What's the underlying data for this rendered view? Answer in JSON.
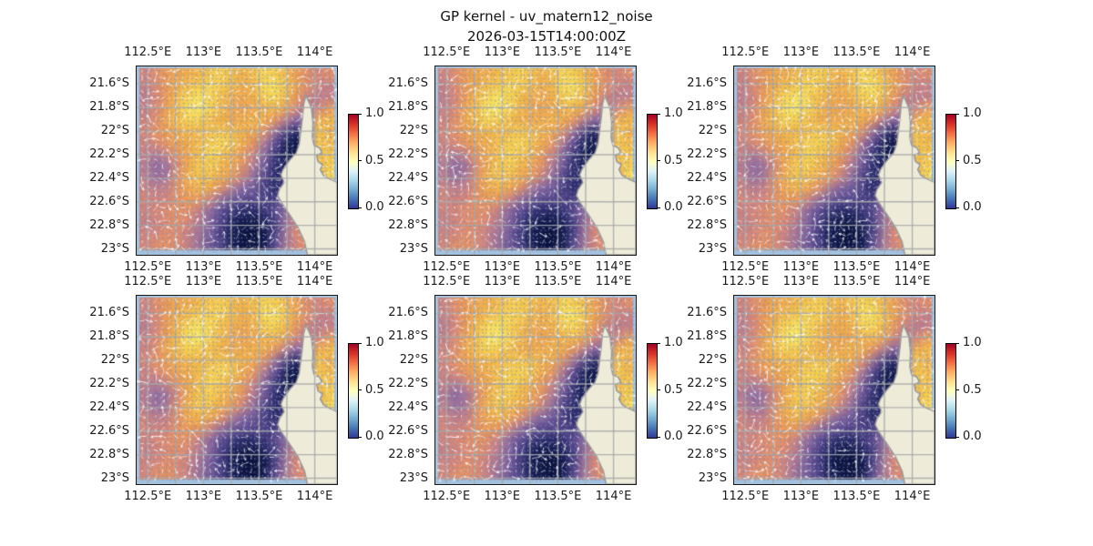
{
  "figure": {
    "title": "GP kernel - uv_matern12_noise",
    "subtitle": "2026-03-15T14:00:00Z",
    "background": "#ffffff"
  },
  "axes": {
    "x_ticks": [
      "112.5°E",
      "113°E",
      "113.5°E",
      "114°E"
    ],
    "y_ticks": [
      "21.6°S",
      "21.8°S",
      "22°S",
      "22.2°S",
      "22.4°S",
      "22.6°S",
      "22.8°S",
      "23°S"
    ]
  },
  "colorbar": {
    "ticks": [
      "1.0",
      "0.5",
      "0.0"
    ],
    "colormap": "RdYlBu_r",
    "gradient_stops": [
      "#a50026",
      "#d73027",
      "#f46d43",
      "#fdae61",
      "#fee090",
      "#ffffbf",
      "#e0f3f8",
      "#abd9e9",
      "#74add1",
      "#4575b4",
      "#313695"
    ]
  },
  "panels": [
    {
      "name": "panel-r1c1",
      "row": 0,
      "col": 0,
      "seed": 11
    },
    {
      "name": "panel-r1c2",
      "row": 0,
      "col": 1,
      "seed": 23
    },
    {
      "name": "panel-r1c3",
      "row": 0,
      "col": 2,
      "seed": 37
    },
    {
      "name": "panel-r2c1",
      "row": 1,
      "col": 0,
      "seed": 51
    },
    {
      "name": "panel-r2c2",
      "row": 1,
      "col": 1,
      "seed": 67
    },
    {
      "name": "panel-r2c3",
      "row": 1,
      "col": 2,
      "seed": 83
    }
  ],
  "map_style": {
    "land_color": "#eeecd9",
    "coast_color": "#9a9a9a",
    "ocean_edge_color": "#a3c1de",
    "grid_color": "#aaaaaa",
    "arrow_color": "#ffffff",
    "dot_color": "#6b93c4"
  },
  "chart_data": {
    "type": "heatmap",
    "title": "GP kernel - uv_matern12_noise",
    "subtitle": "2026-03-15T14:00:00Z",
    "layout": "2 rows x 3 columns of near-identical geographic subplots, each with its own vertical colorbar on the right",
    "lon_range_deg_east": [
      112.4,
      114.2
    ],
    "lat_range_deg_south": [
      21.45,
      23.05
    ],
    "x_tick_lons": [
      112.5,
      113.0,
      113.5,
      114.0
    ],
    "y_tick_lats": [
      21.6,
      21.8,
      22.0,
      22.2,
      22.4,
      22.6,
      22.8,
      23.0
    ],
    "grid_spacing_deg": {
      "lon": 0.25,
      "lat": 0.2
    },
    "colorbar_range": [
      0.0,
      1.0
    ],
    "colorbar_ticks": [
      1.0,
      0.5,
      0.0
    ],
    "overlay": "quiver field: dense small blue markers on every grid cell plus sparse white streak arrows",
    "field_colormap_stops": [
      [
        0.0,
        "#0a1038"
      ],
      [
        0.1,
        "#1a2058"
      ],
      [
        0.22,
        "#3b3578"
      ],
      [
        0.34,
        "#655095"
      ],
      [
        0.44,
        "#8a68a0"
      ],
      [
        0.54,
        "#b67b92"
      ],
      [
        0.63,
        "#de8a76"
      ],
      [
        0.72,
        "#ee9c55"
      ],
      [
        0.82,
        "#f4b34a"
      ],
      [
        0.9,
        "#f7cd4e"
      ],
      [
        1.0,
        "#faee66"
      ]
    ],
    "field_grid_cols": 18,
    "field_grid_rows": 16,
    "field_grid": [
      [
        0.6,
        0.66,
        0.72,
        0.78,
        0.8,
        0.84,
        0.88,
        0.9,
        0.86,
        0.82,
        0.86,
        0.92,
        0.9,
        0.84,
        0.74,
        0.66,
        0.62,
        0.66
      ],
      [
        0.58,
        0.64,
        0.72,
        0.8,
        0.86,
        0.9,
        0.92,
        0.9,
        0.86,
        0.8,
        0.84,
        0.94,
        0.96,
        0.88,
        0.76,
        0.66,
        0.6,
        0.58
      ],
      [
        0.56,
        0.62,
        0.72,
        0.84,
        0.92,
        0.96,
        0.92,
        0.86,
        0.8,
        0.78,
        0.82,
        0.9,
        0.92,
        0.84,
        0.7,
        0.6,
        0.56,
        0.58
      ],
      [
        0.58,
        0.64,
        0.76,
        0.86,
        0.96,
        0.98,
        0.92,
        0.84,
        0.78,
        0.76,
        0.78,
        0.82,
        0.84,
        0.76,
        0.62,
        0.52,
        0.62,
        0.72
      ],
      [
        0.6,
        0.66,
        0.78,
        0.86,
        0.92,
        0.9,
        0.86,
        0.82,
        0.78,
        0.8,
        0.82,
        0.8,
        0.7,
        0.56,
        0.44,
        0.52,
        0.8,
        0.84
      ],
      [
        0.62,
        0.68,
        0.74,
        0.8,
        0.84,
        0.84,
        0.86,
        0.88,
        0.86,
        0.82,
        0.78,
        0.68,
        0.5,
        0.3,
        0.16,
        0.6,
        0.88,
        0.82
      ],
      [
        0.6,
        0.64,
        0.7,
        0.76,
        0.8,
        0.86,
        0.9,
        0.92,
        0.88,
        0.8,
        0.7,
        0.54,
        0.34,
        0.12,
        0.06,
        0.55,
        0.88,
        0.84
      ],
      [
        0.58,
        0.54,
        0.6,
        0.7,
        0.78,
        0.86,
        0.92,
        0.88,
        0.82,
        0.72,
        0.6,
        0.44,
        0.24,
        0.08,
        0.05,
        0.5,
        0.86,
        0.88
      ],
      [
        0.54,
        0.46,
        0.5,
        0.64,
        0.8,
        0.88,
        0.9,
        0.84,
        0.78,
        0.68,
        0.54,
        0.38,
        0.2,
        0.1,
        0.28,
        0.5,
        0.84,
        0.9
      ],
      [
        0.56,
        0.48,
        0.52,
        0.68,
        0.82,
        0.88,
        0.86,
        0.8,
        0.72,
        0.6,
        0.46,
        0.3,
        0.18,
        0.14,
        0.3,
        0.55,
        0.8,
        0.94
      ],
      [
        0.6,
        0.56,
        0.58,
        0.68,
        0.78,
        0.82,
        0.78,
        0.68,
        0.54,
        0.44,
        0.38,
        0.28,
        0.18,
        0.26,
        0.4,
        0.6,
        0.85,
        0.96
      ],
      [
        0.62,
        0.6,
        0.62,
        0.68,
        0.72,
        0.7,
        0.6,
        0.48,
        0.38,
        0.32,
        0.3,
        0.28,
        0.26,
        0.4,
        0.55,
        0.65,
        0.9,
        0.92
      ],
      [
        0.6,
        0.62,
        0.65,
        0.68,
        0.66,
        0.58,
        0.46,
        0.34,
        0.24,
        0.18,
        0.16,
        0.22,
        0.32,
        0.46,
        0.6,
        0.7,
        0.8,
        0.85
      ],
      [
        0.58,
        0.6,
        0.64,
        0.66,
        0.62,
        0.54,
        0.42,
        0.28,
        0.14,
        0.06,
        0.06,
        0.12,
        0.26,
        0.48,
        0.62,
        0.72,
        0.78,
        0.8
      ],
      [
        0.6,
        0.62,
        0.66,
        0.64,
        0.58,
        0.5,
        0.4,
        0.26,
        0.1,
        0.03,
        0.02,
        0.06,
        0.28,
        0.5,
        0.64,
        0.7,
        0.74,
        0.78
      ],
      [
        0.62,
        0.66,
        0.68,
        0.64,
        0.58,
        0.48,
        0.38,
        0.28,
        0.12,
        0.04,
        0.03,
        0.08,
        0.32,
        0.52,
        0.62,
        0.68,
        0.72,
        0.76
      ]
    ],
    "coastline_polygon": [
      [
        0.845,
        0.155
      ],
      [
        0.834,
        0.2
      ],
      [
        0.828,
        0.27
      ],
      [
        0.82,
        0.34
      ],
      [
        0.812,
        0.41
      ],
      [
        0.796,
        0.46
      ],
      [
        0.762,
        0.5
      ],
      [
        0.732,
        0.545
      ],
      [
        0.72,
        0.575
      ],
      [
        0.736,
        0.615
      ],
      [
        0.712,
        0.655
      ],
      [
        0.704,
        0.685
      ],
      [
        0.724,
        0.725
      ],
      [
        0.762,
        0.785
      ],
      [
        0.805,
        0.855
      ],
      [
        0.838,
        0.93
      ],
      [
        0.852,
        1.0
      ],
      [
        1.0,
        1.0
      ],
      [
        1.0,
        0.615
      ],
      [
        0.958,
        0.595
      ],
      [
        0.932,
        0.578
      ],
      [
        0.916,
        0.548
      ],
      [
        0.928,
        0.522
      ],
      [
        0.905,
        0.505
      ],
      [
        0.898,
        0.472
      ],
      [
        0.925,
        0.458
      ],
      [
        0.912,
        0.432
      ],
      [
        0.886,
        0.42
      ],
      [
        0.877,
        0.38
      ],
      [
        0.88,
        0.3
      ],
      [
        0.872,
        0.22
      ]
    ]
  }
}
